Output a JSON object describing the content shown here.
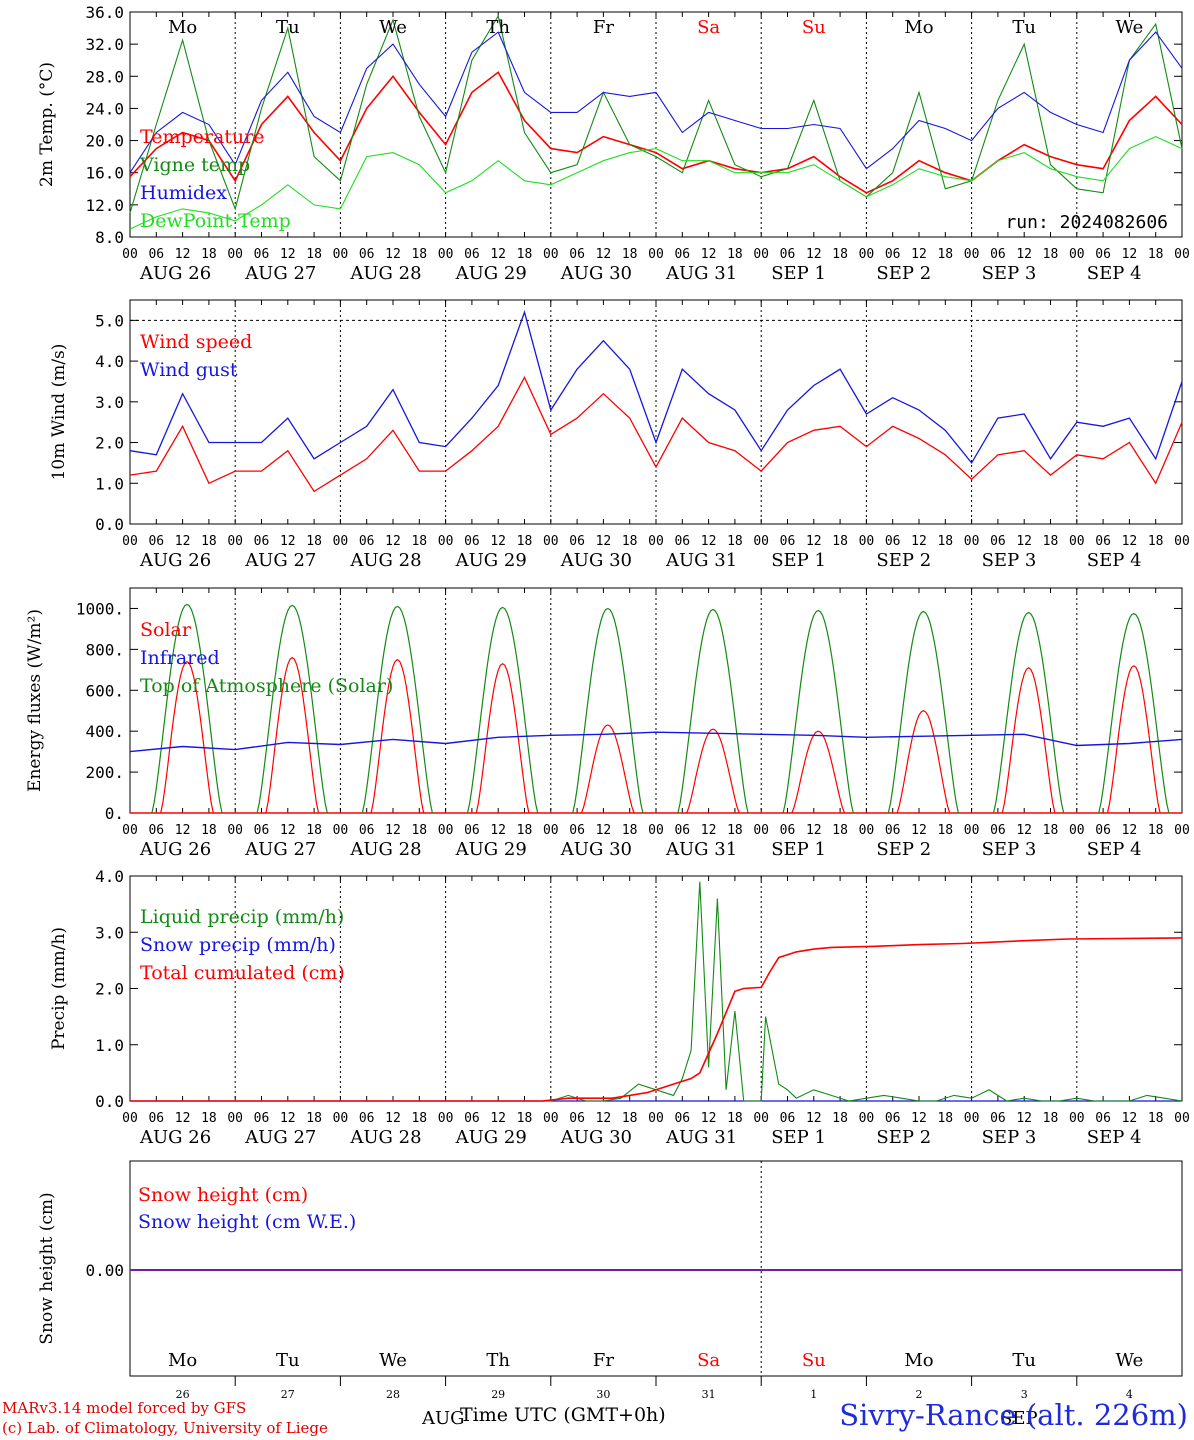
{
  "run_label": "run: 2024082606",
  "footer": {
    "model_line": "MARv3.14 model forced by GFS",
    "copyright_line": "(c) Lab. of Climatology, University of Liege",
    "xaxis_title": "Time UTC (GMT+0h)",
    "location": "Sivry-Rance (alt. 226m)"
  },
  "colors": {
    "red": "#ff0000",
    "green": "#138a13",
    "blue": "#1616e0",
    "lightgreen": "#22dd22",
    "purple": "#7a1aa0"
  },
  "hour_ticks": [
    "00",
    "06",
    "12",
    "18"
  ],
  "dates": [
    "AUG 26",
    "AUG 27",
    "AUG 28",
    "AUG 29",
    "AUG 30",
    "AUG 31",
    "SEP  1",
    "SEP  2",
    "SEP  3",
    "SEP  4"
  ],
  "weekdays": [
    {
      "label": "Mo",
      "color": "#000000"
    },
    {
      "label": "Tu",
      "color": "#000000"
    },
    {
      "label": "We",
      "color": "#000000"
    },
    {
      "label": "Th",
      "color": "#000000"
    },
    {
      "label": "Fr",
      "color": "#000000"
    },
    {
      "label": "Sa",
      "color": "#ff0000"
    },
    {
      "label": "Su",
      "color": "#ff0000"
    },
    {
      "label": "Mo",
      "color": "#000000"
    },
    {
      "label": "Tu",
      "color": "#000000"
    },
    {
      "label": "We",
      "color": "#000000"
    }
  ],
  "snow_day_numbers": [
    "26",
    "27",
    "28",
    "29",
    "30",
    "31",
    "1",
    "2",
    "3",
    "4"
  ],
  "snow_month_labels": [
    "AUG",
    "SEP"
  ],
  "chart_data": [
    {
      "type": "line",
      "ylabel": "2m Temp. (°C)",
      "ylim": [
        8,
        36
      ],
      "yticks": [
        "8.0",
        "12.0",
        "16.0",
        "20.0",
        "24.0",
        "28.0",
        "32.0",
        "36.0"
      ],
      "x_unit": "hours since 2024-08-26 00 UTC",
      "series": [
        {
          "name": "Temperature",
          "color": "#ff0000",
          "x": [
            0,
            6,
            12,
            18,
            24,
            30,
            36,
            42,
            48,
            54,
            60,
            66,
            72,
            78,
            84,
            90,
            96,
            102,
            108,
            114,
            120,
            126,
            132,
            138,
            144,
            150,
            156,
            162,
            168,
            174,
            180,
            186,
            192,
            198,
            204,
            210,
            216,
            222,
            228,
            234,
            240
          ],
          "values": [
            15.5,
            19,
            21,
            20,
            15,
            22,
            25.5,
            21,
            17.5,
            24,
            28,
            23.5,
            19.5,
            26,
            28.5,
            22.5,
            19,
            18.5,
            20.5,
            19.5,
            18.5,
            16.5,
            17.5,
            16.5,
            16,
            16.5,
            18,
            15.5,
            13.5,
            15,
            17.5,
            16,
            15,
            17.5,
            19.5,
            18,
            17,
            16.5,
            22.5,
            25.5,
            22
          ]
        },
        {
          "name": "Vigne temp",
          "color": "#138a13",
          "x": [
            0,
            6,
            12,
            18,
            24,
            30,
            36,
            42,
            48,
            54,
            60,
            66,
            72,
            78,
            84,
            90,
            96,
            102,
            108,
            114,
            120,
            126,
            132,
            138,
            144,
            150,
            156,
            162,
            168,
            174,
            180,
            186,
            192,
            198,
            204,
            210,
            216,
            222,
            228,
            234,
            240
          ],
          "values": [
            11,
            22,
            32.5,
            20,
            11.5,
            24,
            34,
            18,
            15,
            27,
            35,
            23,
            16,
            30,
            35.5,
            21,
            16,
            17,
            26,
            19.5,
            18,
            16,
            25,
            17,
            15.5,
            16.5,
            25,
            15,
            13,
            16,
            26,
            14,
            15,
            25,
            32,
            17,
            14,
            13.5,
            30,
            34.5,
            19
          ]
        },
        {
          "name": "Humidex",
          "color": "#1616e0",
          "x": [
            0,
            6,
            12,
            18,
            24,
            30,
            36,
            42,
            48,
            54,
            60,
            66,
            72,
            78,
            84,
            90,
            96,
            102,
            108,
            114,
            120,
            126,
            132,
            138,
            144,
            150,
            156,
            162,
            168,
            174,
            180,
            186,
            192,
            198,
            204,
            210,
            216,
            222,
            228,
            234,
            240
          ],
          "values": [
            16,
            21,
            23.5,
            22,
            17,
            25,
            28.5,
            23,
            21,
            29,
            32,
            27,
            23,
            31,
            33.5,
            26,
            23.5,
            23.5,
            26,
            25.5,
            26,
            21,
            23.5,
            22.5,
            21.5,
            21.5,
            22,
            21.5,
            16.5,
            19,
            22.5,
            21.5,
            20,
            24,
            26,
            23.5,
            22,
            21,
            30,
            33.5,
            29
          ]
        },
        {
          "name": "DewPoint Temp",
          "color": "#22dd22",
          "x": [
            0,
            6,
            12,
            18,
            24,
            30,
            36,
            42,
            48,
            54,
            60,
            66,
            72,
            78,
            84,
            90,
            96,
            102,
            108,
            114,
            120,
            126,
            132,
            138,
            144,
            150,
            156,
            162,
            168,
            174,
            180,
            186,
            192,
            198,
            204,
            210,
            216,
            222,
            228,
            234,
            240
          ],
          "values": [
            9,
            10.5,
            11.5,
            11,
            10,
            12,
            14.5,
            12,
            11.5,
            18,
            18.5,
            17,
            13.5,
            15,
            17.5,
            15,
            14.5,
            16,
            17.5,
            18.5,
            19,
            17.5,
            17.5,
            16,
            16,
            16,
            17,
            15,
            13,
            14.5,
            16.5,
            15.5,
            15,
            17.5,
            18.5,
            16.5,
            15.5,
            15,
            19,
            20.5,
            19
          ]
        }
      ]
    },
    {
      "type": "line",
      "ylabel": "10m Wind (m/s)",
      "ylim": [
        0,
        5.5
      ],
      "yticks": [
        "0.0",
        "1.0",
        "2.0",
        "3.0",
        "4.0",
        "5.0"
      ],
      "series": [
        {
          "name": "Wind speed",
          "color": "#ff0000",
          "x": [
            0,
            6,
            12,
            18,
            24,
            30,
            36,
            42,
            48,
            54,
            60,
            66,
            72,
            78,
            84,
            90,
            96,
            102,
            108,
            114,
            120,
            126,
            132,
            138,
            144,
            150,
            156,
            162,
            168,
            174,
            180,
            186,
            192,
            198,
            204,
            210,
            216,
            222,
            228,
            234,
            240
          ],
          "values": [
            1.2,
            1.3,
            2.4,
            1.0,
            1.3,
            1.3,
            1.8,
            0.8,
            1.2,
            1.6,
            2.3,
            1.3,
            1.3,
            1.8,
            2.4,
            3.6,
            2.2,
            2.6,
            3.2,
            2.6,
            1.4,
            2.6,
            2.0,
            1.8,
            1.3,
            2.0,
            2.3,
            2.4,
            1.9,
            2.4,
            2.1,
            1.7,
            1.1,
            1.7,
            1.8,
            1.2,
            1.7,
            1.6,
            2.0,
            1.0,
            2.5
          ]
        },
        {
          "name": "Wind gust",
          "color": "#1616e0",
          "x": [
            0,
            6,
            12,
            18,
            24,
            30,
            36,
            42,
            48,
            54,
            60,
            66,
            72,
            78,
            84,
            90,
            96,
            102,
            108,
            114,
            120,
            126,
            132,
            138,
            144,
            150,
            156,
            162,
            168,
            174,
            180,
            186,
            192,
            198,
            204,
            210,
            216,
            222,
            228,
            234,
            240
          ],
          "values": [
            1.8,
            1.7,
            3.2,
            2.0,
            2.0,
            2.0,
            2.6,
            1.6,
            2.0,
            2.4,
            3.3,
            2.0,
            1.9,
            2.6,
            3.4,
            5.2,
            2.8,
            3.8,
            4.5,
            3.8,
            2.0,
            3.8,
            3.2,
            2.8,
            1.8,
            2.8,
            3.4,
            3.8,
            2.7,
            3.1,
            2.8,
            2.3,
            1.5,
            2.6,
            2.7,
            1.6,
            2.5,
            2.4,
            2.6,
            1.6,
            3.5
          ]
        }
      ]
    },
    {
      "type": "line",
      "ylabel": "Energy fluxes (W/m²)",
      "ylim": [
        0,
        1100
      ],
      "yticks": [
        "0.",
        "200.",
        "400.",
        "600.",
        "800.",
        "1000."
      ],
      "series": [
        {
          "name": "Solar",
          "color": "#ff0000",
          "day_peaks": [
            740,
            760,
            750,
            730,
            430,
            410,
            400,
            500,
            710,
            720
          ]
        },
        {
          "name": "Infrared",
          "color": "#1616e0",
          "x": [
            0,
            12,
            24,
            36,
            48,
            60,
            72,
            84,
            96,
            108,
            120,
            132,
            144,
            156,
            168,
            180,
            192,
            204,
            216,
            228,
            240
          ],
          "values": [
            300,
            325,
            310,
            345,
            335,
            360,
            340,
            370,
            380,
            385,
            395,
            390,
            385,
            380,
            370,
            375,
            380,
            385,
            330,
            340,
            360
          ]
        },
        {
          "name": "Top of Atmosphere (Solar)",
          "color": "#138a13",
          "day_peaks": [
            1020,
            1015,
            1010,
            1005,
            1000,
            995,
            990,
            985,
            980,
            975
          ]
        }
      ]
    },
    {
      "type": "line",
      "ylabel": "Precip (mm/h)",
      "ylim": [
        0,
        4
      ],
      "yticks": [
        "0.0",
        "1.0",
        "2.0",
        "3.0",
        "4.0"
      ],
      "series": [
        {
          "name": "Liquid precip (mm/h)",
          "color": "#138a13",
          "x": [
            0,
            96,
            100,
            104,
            108,
            112,
            116,
            120,
            124,
            126,
            128,
            130,
            132,
            134,
            136,
            138,
            140,
            142,
            144,
            145,
            146,
            148,
            150,
            152,
            156,
            160,
            164,
            168,
            172,
            176,
            180,
            184,
            188,
            192,
            196,
            200,
            204,
            208,
            212,
            216,
            220,
            224,
            228,
            232,
            236,
            240
          ],
          "values": [
            0,
            0,
            0.1,
            0,
            0,
            0.05,
            0.3,
            0.2,
            0.1,
            0.4,
            0.9,
            3.9,
            0.6,
            3.6,
            0.2,
            1.6,
            0,
            0,
            0,
            1.5,
            1.1,
            0.3,
            0.2,
            0.05,
            0.2,
            0.1,
            0,
            0.05,
            0.1,
            0.05,
            0,
            0,
            0.1,
            0.05,
            0.2,
            0,
            0.05,
            0,
            0,
            0.05,
            0,
            0,
            0,
            0.1,
            0.05,
            0
          ]
        },
        {
          "name": "Snow precip (mm/h)",
          "color": "#1616e0",
          "x": [
            0,
            240
          ],
          "values": [
            0,
            0
          ]
        },
        {
          "name": "Total cumulated (cm)",
          "color": "#ff0000",
          "x": [
            0,
            94,
            100,
            110,
            118,
            124,
            128,
            130,
            134,
            138,
            140,
            144,
            146,
            148,
            152,
            156,
            160,
            170,
            180,
            190,
            204,
            214,
            240
          ],
          "values": [
            0,
            0,
            0.05,
            0.05,
            0.15,
            0.3,
            0.4,
            0.5,
            1.2,
            1.95,
            2.0,
            2.02,
            2.3,
            2.55,
            2.65,
            2.7,
            2.73,
            2.75,
            2.78,
            2.8,
            2.85,
            2.88,
            2.9
          ]
        }
      ]
    },
    {
      "type": "line",
      "ylabel": "Snow height (cm)",
      "ytick": "0.00",
      "series": [
        {
          "name": "Snow height (cm)",
          "color": "#ff0000",
          "x": [
            0,
            240
          ],
          "values": [
            0,
            0
          ]
        },
        {
          "name": "Snow height (cm W.E.)",
          "color": "#1616e0",
          "x": [
            0,
            240
          ],
          "values": [
            0,
            0
          ]
        }
      ]
    }
  ]
}
